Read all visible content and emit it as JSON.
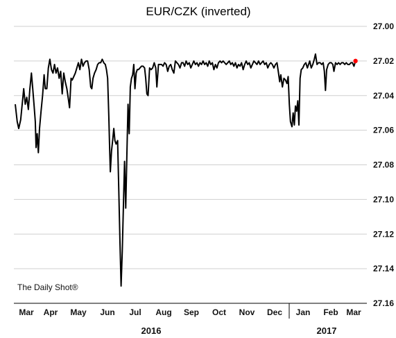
{
  "chart_data": {
    "type": "line",
    "title": "EUR/CZK (inverted)",
    "source": "The Daily Shot®",
    "y_inverted": true,
    "ylim": [
      27.0,
      27.16
    ],
    "yticks": [
      "27.00",
      "27.02",
      "27.04",
      "27.06",
      "27.08",
      "27.10",
      "27.12",
      "27.14",
      "27.16"
    ],
    "y_axis_position": "right",
    "grid": "horizontal",
    "x_months": [
      "Mar",
      "Apr",
      "May",
      "Jun",
      "Jul",
      "Aug",
      "Sep",
      "Oct",
      "Nov",
      "Dec",
      "Jan",
      "Feb",
      "Mar"
    ],
    "x_years": [
      "2016",
      "2017"
    ],
    "series": [
      {
        "color": "#000000",
        "last_point_color": "#ff0000",
        "points": [
          [
            0.0,
            27.045
          ],
          [
            0.25,
            27.055
          ],
          [
            0.45,
            27.059
          ],
          [
            0.7,
            27.054
          ],
          [
            0.95,
            27.043
          ],
          [
            1.1,
            27.036
          ],
          [
            1.3,
            27.045
          ],
          [
            1.5,
            27.041
          ],
          [
            1.7,
            27.048
          ],
          [
            1.9,
            27.036
          ],
          [
            2.1,
            27.027
          ],
          [
            2.25,
            27.035
          ],
          [
            2.45,
            27.046
          ],
          [
            2.6,
            27.055
          ],
          [
            2.7,
            27.07
          ],
          [
            2.85,
            27.062
          ],
          [
            3.0,
            27.073
          ],
          [
            3.15,
            27.059
          ],
          [
            3.35,
            27.049
          ],
          [
            3.55,
            27.04
          ],
          [
            3.75,
            27.028
          ],
          [
            3.9,
            27.036
          ],
          [
            4.1,
            27.036
          ],
          [
            4.3,
            27.024
          ],
          [
            4.5,
            27.019
          ],
          [
            4.7,
            27.025
          ],
          [
            4.9,
            27.027
          ],
          [
            5.1,
            27.022
          ],
          [
            5.3,
            27.027
          ],
          [
            5.5,
            27.024
          ],
          [
            5.7,
            27.03
          ],
          [
            5.9,
            27.026
          ],
          [
            6.1,
            27.039
          ],
          [
            6.3,
            27.027
          ],
          [
            6.5,
            27.032
          ],
          [
            6.7,
            27.036
          ],
          [
            6.9,
            27.042
          ],
          [
            7.05,
            27.047
          ],
          [
            7.25,
            27.03
          ],
          [
            7.4,
            27.031
          ],
          [
            7.6,
            27.029
          ],
          [
            7.8,
            27.027
          ],
          [
            8.0,
            27.024
          ],
          [
            8.2,
            27.021
          ],
          [
            8.4,
            27.025
          ],
          [
            8.6,
            27.019
          ],
          [
            8.8,
            27.023
          ],
          [
            9.0,
            27.021
          ],
          [
            9.2,
            27.02
          ],
          [
            9.4,
            27.02
          ],
          [
            9.6,
            27.025
          ],
          [
            9.8,
            27.035
          ],
          [
            9.95,
            27.036
          ],
          [
            10.1,
            27.03
          ],
          [
            10.3,
            27.027
          ],
          [
            10.5,
            27.025
          ],
          [
            10.7,
            27.022
          ],
          [
            10.9,
            27.021
          ],
          [
            11.1,
            27.021
          ],
          [
            11.3,
            27.019
          ],
          [
            11.5,
            27.021
          ],
          [
            11.7,
            27.022
          ],
          [
            11.85,
            27.025
          ],
          [
            12.0,
            27.03
          ],
          [
            12.15,
            27.052
          ],
          [
            12.25,
            27.069
          ],
          [
            12.35,
            27.084
          ],
          [
            12.5,
            27.072
          ],
          [
            12.65,
            27.066
          ],
          [
            12.8,
            27.059
          ],
          [
            12.95,
            27.066
          ],
          [
            13.1,
            27.068
          ],
          [
            13.3,
            27.066
          ],
          [
            13.45,
            27.095
          ],
          [
            13.6,
            27.125
          ],
          [
            13.75,
            27.15
          ],
          [
            13.9,
            27.13
          ],
          [
            14.05,
            27.103
          ],
          [
            14.2,
            27.078
          ],
          [
            14.35,
            27.105
          ],
          [
            14.5,
            27.075
          ],
          [
            14.65,
            27.045
          ],
          [
            14.8,
            27.062
          ],
          [
            14.95,
            27.035
          ],
          [
            15.1,
            27.03
          ],
          [
            15.25,
            27.028
          ],
          [
            15.4,
            27.022
          ],
          [
            15.55,
            27.036
          ],
          [
            15.7,
            27.027
          ],
          [
            15.85,
            27.025
          ],
          [
            16.0,
            27.025
          ],
          [
            16.2,
            27.024
          ],
          [
            16.4,
            27.023
          ],
          [
            16.6,
            27.023
          ],
          [
            16.8,
            27.024
          ],
          [
            16.95,
            27.03
          ],
          [
            17.1,
            27.039
          ],
          [
            17.25,
            27.04
          ],
          [
            17.45,
            27.024
          ],
          [
            17.65,
            27.025
          ],
          [
            17.85,
            27.024
          ],
          [
            18.05,
            27.021
          ],
          [
            18.25,
            27.024
          ],
          [
            18.4,
            27.035
          ],
          [
            18.6,
            27.022
          ],
          [
            18.8,
            27.022
          ],
          [
            19.0,
            27.022
          ],
          [
            19.2,
            27.023
          ],
          [
            19.4,
            27.021
          ],
          [
            19.6,
            27.022
          ],
          [
            19.8,
            27.026
          ],
          [
            20.0,
            27.023
          ],
          [
            20.2,
            27.022
          ],
          [
            20.4,
            27.025
          ],
          [
            20.6,
            27.027
          ],
          [
            20.8,
            27.02
          ],
          [
            21.0,
            27.021
          ],
          [
            21.2,
            27.022
          ],
          [
            21.4,
            27.024
          ],
          [
            21.6,
            27.021
          ],
          [
            21.8,
            27.021
          ],
          [
            22.0,
            27.023
          ],
          [
            22.2,
            27.02
          ],
          [
            22.4,
            27.022
          ],
          [
            22.6,
            27.021
          ],
          [
            22.8,
            27.024
          ],
          [
            23.0,
            27.022
          ],
          [
            23.2,
            27.02
          ],
          [
            23.4,
            27.022
          ],
          [
            23.6,
            27.021
          ],
          [
            23.8,
            27.023
          ],
          [
            24.0,
            27.021
          ],
          [
            24.2,
            27.022
          ],
          [
            24.4,
            27.02
          ],
          [
            24.6,
            27.022
          ],
          [
            24.8,
            27.021
          ],
          [
            25.0,
            27.023
          ],
          [
            25.2,
            27.02
          ],
          [
            25.4,
            27.022
          ],
          [
            25.6,
            27.021
          ],
          [
            25.8,
            27.025
          ],
          [
            26.0,
            27.022
          ],
          [
            26.2,
            27.024
          ],
          [
            26.4,
            27.021
          ],
          [
            26.6,
            27.02
          ],
          [
            26.8,
            27.021
          ],
          [
            27.0,
            27.02
          ],
          [
            27.2,
            27.021
          ],
          [
            27.4,
            27.022
          ],
          [
            27.6,
            27.021
          ],
          [
            27.8,
            27.02
          ],
          [
            28.0,
            27.022
          ],
          [
            28.2,
            27.021
          ],
          [
            28.4,
            27.023
          ],
          [
            28.6,
            27.021
          ],
          [
            28.8,
            27.024
          ],
          [
            29.0,
            27.022
          ],
          [
            29.2,
            27.023
          ],
          [
            29.4,
            27.021
          ],
          [
            29.6,
            27.025
          ],
          [
            29.8,
            27.022
          ],
          [
            30.0,
            27.02
          ],
          [
            30.2,
            27.022
          ],
          [
            30.4,
            27.021
          ],
          [
            30.6,
            27.024
          ],
          [
            30.8,
            27.022
          ],
          [
            31.0,
            27.02
          ],
          [
            31.2,
            27.021
          ],
          [
            31.4,
            27.022
          ],
          [
            31.6,
            27.02
          ],
          [
            31.8,
            27.022
          ],
          [
            32.0,
            27.021
          ],
          [
            32.2,
            27.02
          ],
          [
            32.4,
            27.022
          ],
          [
            32.6,
            27.021
          ],
          [
            32.8,
            27.024
          ],
          [
            33.0,
            27.022
          ],
          [
            33.2,
            27.021
          ],
          [
            33.4,
            27.022
          ],
          [
            33.6,
            27.024
          ],
          [
            33.8,
            27.022
          ],
          [
            34.0,
            27.021
          ],
          [
            34.2,
            27.027
          ],
          [
            34.35,
            27.032
          ],
          [
            34.5,
            27.028
          ],
          [
            34.7,
            27.035
          ],
          [
            34.9,
            27.03
          ],
          [
            35.1,
            27.031
          ],
          [
            35.3,
            27.033
          ],
          [
            35.45,
            27.029
          ],
          [
            35.6,
            27.045
          ],
          [
            35.75,
            27.055
          ],
          [
            35.95,
            27.058
          ],
          [
            36.1,
            27.05
          ],
          [
            36.25,
            27.057
          ],
          [
            36.4,
            27.046
          ],
          [
            36.55,
            27.049
          ],
          [
            36.7,
            27.043
          ],
          [
            36.85,
            27.057
          ],
          [
            37.0,
            27.03
          ],
          [
            37.15,
            27.025
          ],
          [
            37.35,
            27.024
          ],
          [
            37.55,
            27.022
          ],
          [
            37.75,
            27.021
          ],
          [
            37.95,
            27.024
          ],
          [
            38.1,
            27.022
          ],
          [
            38.25,
            27.02
          ],
          [
            38.45,
            27.024
          ],
          [
            38.65,
            27.022
          ],
          [
            38.85,
            27.019
          ],
          [
            39.0,
            27.016
          ],
          [
            39.2,
            27.022
          ],
          [
            39.4,
            27.021
          ],
          [
            39.6,
            27.021
          ],
          [
            39.8,
            27.022
          ],
          [
            40.0,
            27.021
          ],
          [
            40.15,
            27.026
          ],
          [
            40.3,
            27.037
          ],
          [
            40.45,
            27.025
          ],
          [
            40.65,
            27.022
          ],
          [
            40.85,
            27.021
          ],
          [
            41.05,
            27.021
          ],
          [
            41.25,
            27.022
          ],
          [
            41.4,
            27.026
          ],
          [
            41.6,
            27.021
          ],
          [
            41.8,
            27.022
          ],
          [
            42.0,
            27.021
          ],
          [
            42.2,
            27.022
          ],
          [
            42.4,
            27.021
          ],
          [
            42.6,
            27.021
          ],
          [
            42.8,
            27.022
          ],
          [
            43.0,
            27.021
          ],
          [
            43.2,
            27.022
          ],
          [
            43.4,
            27.022
          ],
          [
            43.6,
            27.021
          ],
          [
            43.8,
            27.021
          ],
          [
            44.0,
            27.023
          ],
          [
            44.2,
            27.02
          ]
        ]
      }
    ]
  }
}
